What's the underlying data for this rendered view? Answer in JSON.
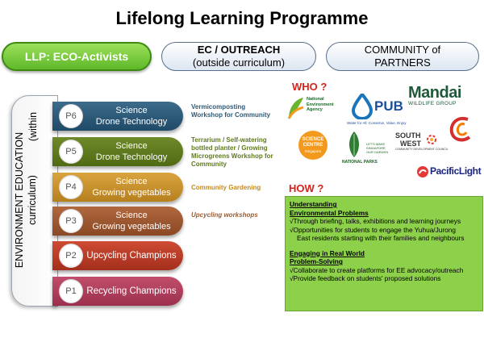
{
  "title": "Lifelong Learning Programme",
  "header": {
    "llp": "LLP: ECO-Activists",
    "ec_line1": "EC / OUTREACH",
    "ec_line2": "(outside curriculum)",
    "cp_line1": "COMMUNITY of",
    "cp_line2": "PARTNERS"
  },
  "curriculum": {
    "line1": "ENVIRONMENT EDUCATION",
    "line2": "curriculum)",
    "within": "(within"
  },
  "levels": [
    {
      "id": "P6",
      "line1": "Science",
      "line2": "Drone Technology",
      "color": "#2a5677"
    },
    {
      "id": "P5",
      "line1": "Science",
      "line2": "Drone Technology",
      "color": "#5c761a"
    },
    {
      "id": "P4",
      "line1": "Science",
      "line2": "Growing vegetables",
      "color": "#c8902c"
    },
    {
      "id": "P3",
      "line1": "Science",
      "line2": "Growing vegetables",
      "color": "#9a552f"
    },
    {
      "id": "P2",
      "line1": "Upcycling Champions",
      "color": "#b83a26"
    },
    {
      "id": "P1",
      "line1": "Recycling Champions",
      "color": "#ab3d5a"
    }
  ],
  "ec_items": [
    "Vermicomposting Workshop for Community",
    "Terrarium / Self-watering bottled planter / Growing Microgreens Workshop for Community",
    "Community Gardening",
    "Upcycling workshops"
  ],
  "who_label": "WHO ?",
  "how_label": "HOW ?",
  "partners": {
    "nea_line1": "National",
    "nea_line2": "Environment",
    "nea_line3": "Agency",
    "pub": "PUB",
    "pub_tag": "Water for All: Conserve, Value, Enjoy",
    "mandai": "Mandai",
    "mandai_sub": "WILDLIFE GROUP",
    "sci_line1": "SCIENCE",
    "sci_line2": "CENTRE",
    "sci_line3": "Singapore",
    "nparks": "NATIONAL PARKS",
    "nparks_tag": "LET'S MAKE SINGAPORE OUR GARDEN",
    "southwest_1": "SOUTH",
    "southwest_2": "WEST",
    "southwest_tag": "COMMUNITY DEVELOPMENT COUNCIL",
    "pacificlight": "PacificLight"
  },
  "how": {
    "h1a": "Understanding",
    "h1b": "Environmental Problems",
    "b1": "√Through briefing, talks, exhibitions and learning journeys",
    "b2a": "√Opportunities for students to engage the Yuhua/Jurong",
    "b2b": "East residents starting with their families and neighbours",
    "h2a": "Engaging in Real World",
    "h2b": "Problem-Solving",
    "b3": "√Collaborate to create platforms for EE advocacy/outreach",
    "b4": "√Provide feedback on students' proposed solutions"
  }
}
